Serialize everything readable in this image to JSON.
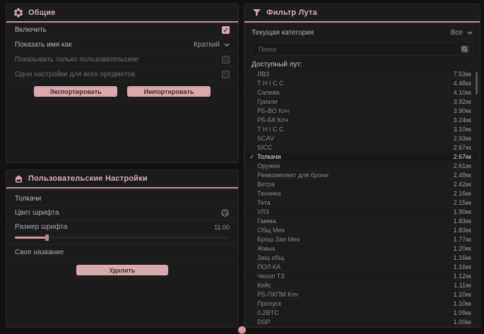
{
  "colors": {
    "accent": "#d8a3a8",
    "header_underline": "#c6949b",
    "panel_bg": "#1c1c1c",
    "page_bg": "#121212",
    "selected_text": "#e2e2e2"
  },
  "general_panel": {
    "title": "Общие",
    "check_glyph": "✓",
    "rows": [
      {
        "label": "Включить",
        "checked": true
      },
      {
        "label": "Показать имя как",
        "value": "Краткий"
      },
      {
        "label": "Показывать только пользовательские",
        "checked": false
      },
      {
        "label": "Одни настройки для всех предметов",
        "checked": false
      }
    ],
    "export_label": "Экспортировать",
    "import_label": "Импортировать"
  },
  "custom_panel": {
    "title": "Пользовательские Настройки",
    "item_name": "Толкачи",
    "font_color_label": "Цвет шрифта",
    "font_size_label": "Размер шрифта",
    "font_size_value": "11.00",
    "font_size_fill_pct": 15,
    "custom_name_label": "Свое название",
    "delete_label": "Удалить"
  },
  "filter_panel": {
    "title": "Фильтр Лута",
    "category_label": "Текущая категория",
    "category_value": "Все",
    "search_placeholder": "Поиск",
    "list_label": "Доступный лут:",
    "check_glyph": "✓",
    "items": [
      {
        "name": "ЛВЗ",
        "value": "7.53кк",
        "selected": false
      },
      {
        "name": "T H I C C",
        "value": "4.48кк",
        "selected": false
      },
      {
        "name": "Салева",
        "value": "4.10кк",
        "selected": false
      },
      {
        "name": "Гризли",
        "value": "3.92кк",
        "selected": false
      },
      {
        "name": "РБ-ВО Клч",
        "value": "3.90кк",
        "selected": false
      },
      {
        "name": "РБ-БК Клч",
        "value": "3.24кк",
        "selected": false
      },
      {
        "name": "T H I C C",
        "value": "3.10кк",
        "selected": false
      },
      {
        "name": "SCAV",
        "value": "2.93кк",
        "selected": false
      },
      {
        "name": "SICC",
        "value": "2.67кк",
        "selected": false
      },
      {
        "name": "Толкачи",
        "value": "2.67кк",
        "selected": true
      },
      {
        "name": "Оружие",
        "value": "2.61кк",
        "selected": false
      },
      {
        "name": "Ремкомплект для брони",
        "value": "2.48кк",
        "selected": false
      },
      {
        "name": "Ветра",
        "value": "2.42кк",
        "selected": false
      },
      {
        "name": "Техника",
        "value": "2.16кк",
        "selected": false
      },
      {
        "name": "Тета",
        "value": "2.15кк",
        "selected": false
      },
      {
        "name": "УЛЗ",
        "value": "1.90кк",
        "selected": false
      },
      {
        "name": "Гамма",
        "value": "1.83кк",
        "selected": false
      },
      {
        "name": "Общ Мех",
        "value": "1.83кк",
        "selected": false
      },
      {
        "name": "Брош Зап Мех",
        "value": "1.77кк",
        "selected": false
      },
      {
        "name": "Жмых",
        "value": "1.20кк",
        "selected": false
      },
      {
        "name": "Защ общ",
        "value": "1.16кк",
        "selected": false
      },
      {
        "name": "ПОЛ КА",
        "value": "1.16кк",
        "selected": false
      },
      {
        "name": "Чехол ТЗ",
        "value": "1.12кк",
        "selected": false
      },
      {
        "name": "Кейс",
        "value": "1.11кк",
        "selected": false
      },
      {
        "name": "РБ-ПКПМ Клч",
        "value": "1.10кк",
        "selected": false
      },
      {
        "name": "Пропуск",
        "value": "1.10кк",
        "selected": false
      },
      {
        "name": "0.2BTC",
        "value": "1.09кк",
        "selected": false
      },
      {
        "name": "DSP",
        "value": "1.00кк",
        "selected": false
      }
    ]
  }
}
